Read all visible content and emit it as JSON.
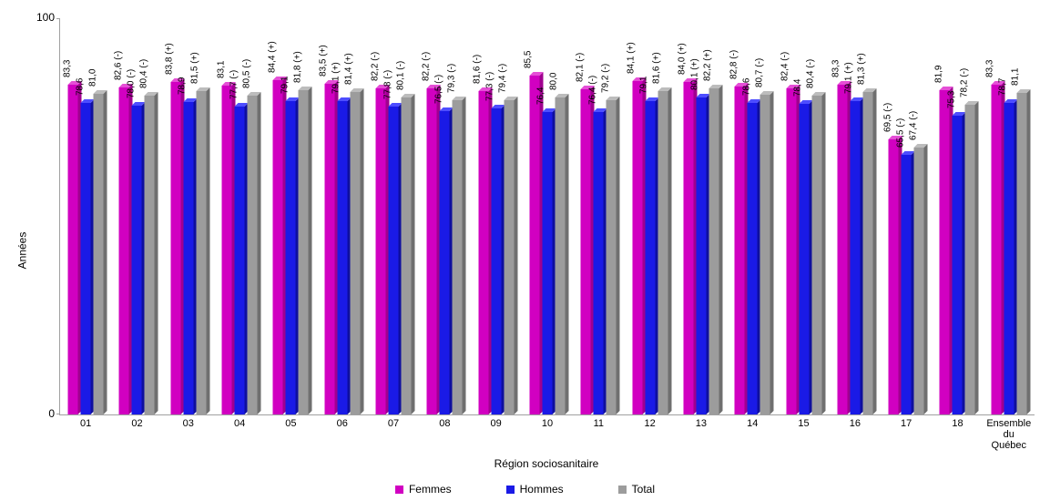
{
  "chart": {
    "type": "bar-3d-grouped",
    "y_label": "Années",
    "x_label": "Région sociosanitaire",
    "ylim": [
      0,
      100
    ],
    "yticks": [
      0,
      100
    ],
    "background_color": "#ffffff",
    "axis_color": "#a0a0a0",
    "label_fontsize": 12,
    "value_label_fontsize": 10,
    "series": [
      {
        "key": "femmes",
        "label": "Femmes",
        "color": "#d100c1",
        "side_color": "#a0008f",
        "top_color": "#e54ed6"
      },
      {
        "key": "hommes",
        "label": "Hommes",
        "color": "#1a1ae6",
        "side_color": "#0f0f9e",
        "top_color": "#4d4dff"
      },
      {
        "key": "total",
        "label": "Total",
        "color": "#9c9c9c",
        "side_color": "#6f6f6f",
        "top_color": "#bcbcbc"
      }
    ],
    "categories": [
      {
        "label": "01",
        "femmes": {
          "v": 83.3,
          "t": "83,3"
        },
        "hommes": {
          "v": 78.6,
          "t": "78,6"
        },
        "total": {
          "v": 81.0,
          "t": "81,0"
        }
      },
      {
        "label": "02",
        "femmes": {
          "v": 82.6,
          "t": "82,6 (-)"
        },
        "hommes": {
          "v": 78.0,
          "t": "78,0 (-)"
        },
        "total": {
          "v": 80.4,
          "t": "80,4 (-)"
        }
      },
      {
        "label": "03",
        "femmes": {
          "v": 83.8,
          "t": "83,8 (+)"
        },
        "hommes": {
          "v": 78.9,
          "t": "78,9"
        },
        "total": {
          "v": 81.5,
          "t": "81,5 (+)"
        }
      },
      {
        "label": "04",
        "femmes": {
          "v": 83.1,
          "t": "83,1"
        },
        "hommes": {
          "v": 77.7,
          "t": "77,7 (-)"
        },
        "total": {
          "v": 80.5,
          "t": "80,5 (-)"
        }
      },
      {
        "label": "05",
        "femmes": {
          "v": 84.4,
          "t": "84,4 (+)"
        },
        "hommes": {
          "v": 79.1,
          "t": "79,1"
        },
        "total": {
          "v": 81.8,
          "t": "81,8 (+)"
        }
      },
      {
        "label": "06",
        "femmes": {
          "v": 83.5,
          "t": "83,5 (+)"
        },
        "hommes": {
          "v": 79.1,
          "t": "79,1 (+)"
        },
        "total": {
          "v": 81.4,
          "t": "81,4 (+)"
        }
      },
      {
        "label": "07",
        "femmes": {
          "v": 82.2,
          "t": "82,2 (-)"
        },
        "hommes": {
          "v": 77.8,
          "t": "77,8 (-)"
        },
        "total": {
          "v": 80.1,
          "t": "80,1 (-)"
        }
      },
      {
        "label": "08",
        "femmes": {
          "v": 82.2,
          "t": "82,2 (-)"
        },
        "hommes": {
          "v": 76.5,
          "t": "76,5 (-)"
        },
        "total": {
          "v": 79.3,
          "t": "79,3 (-)"
        }
      },
      {
        "label": "09",
        "femmes": {
          "v": 81.6,
          "t": "81,6 (-)"
        },
        "hommes": {
          "v": 77.3,
          "t": "77,3 (-)"
        },
        "total": {
          "v": 79.4,
          "t": "79,4 (-)"
        }
      },
      {
        "label": "10",
        "femmes": {
          "v": 85.5,
          "t": "85,5"
        },
        "hommes": {
          "v": 76.4,
          "t": "76,4"
        },
        "total": {
          "v": 80.0,
          "t": "80,0"
        }
      },
      {
        "label": "11",
        "femmes": {
          "v": 82.1,
          "t": "82,1 (-)"
        },
        "hommes": {
          "v": 76.4,
          "t": "76,4 (-)"
        },
        "total": {
          "v": 79.2,
          "t": "79,2 (-)"
        }
      },
      {
        "label": "12",
        "femmes": {
          "v": 84.1,
          "t": "84,1 (+)"
        },
        "hommes": {
          "v": 79.1,
          "t": "79,1"
        },
        "total": {
          "v": 81.6,
          "t": "81,6 (+)"
        }
      },
      {
        "label": "13",
        "femmes": {
          "v": 84.0,
          "t": "84,0 (+)"
        },
        "hommes": {
          "v": 80.1,
          "t": "80,1 (+)"
        },
        "total": {
          "v": 82.2,
          "t": "82,2 (+)"
        }
      },
      {
        "label": "14",
        "femmes": {
          "v": 82.8,
          "t": "82,8 (-)"
        },
        "hommes": {
          "v": 78.6,
          "t": "78,6"
        },
        "total": {
          "v": 80.7,
          "t": "80,7 (-)"
        }
      },
      {
        "label": "15",
        "femmes": {
          "v": 82.4,
          "t": "82,4 (-)"
        },
        "hommes": {
          "v": 78.4,
          "t": "78,4"
        },
        "total": {
          "v": 80.4,
          "t": "80,4 (-)"
        }
      },
      {
        "label": "16",
        "femmes": {
          "v": 83.3,
          "t": "83,3"
        },
        "hommes": {
          "v": 79.1,
          "t": "79,1 (+)"
        },
        "total": {
          "v": 81.3,
          "t": "81,3 (+)"
        }
      },
      {
        "label": "17",
        "femmes": {
          "v": 69.5,
          "t": "69,5 (-)"
        },
        "hommes": {
          "v": 65.5,
          "t": "65,5 (-)"
        },
        "total": {
          "v": 67.4,
          "t": "67,4 (-)"
        }
      },
      {
        "label": "18",
        "femmes": {
          "v": 81.9,
          "t": "81,9"
        },
        "hommes": {
          "v": 75.3,
          "t": "75,3"
        },
        "total": {
          "v": 78.2,
          "t": "78,2 (-)"
        }
      },
      {
        "label": "Ensemble\ndu\nQuébec",
        "femmes": {
          "v": 83.3,
          "t": "83,3"
        },
        "hommes": {
          "v": 78.7,
          "t": "78,7"
        },
        "total": {
          "v": 81.1,
          "t": "81,1"
        }
      }
    ]
  }
}
